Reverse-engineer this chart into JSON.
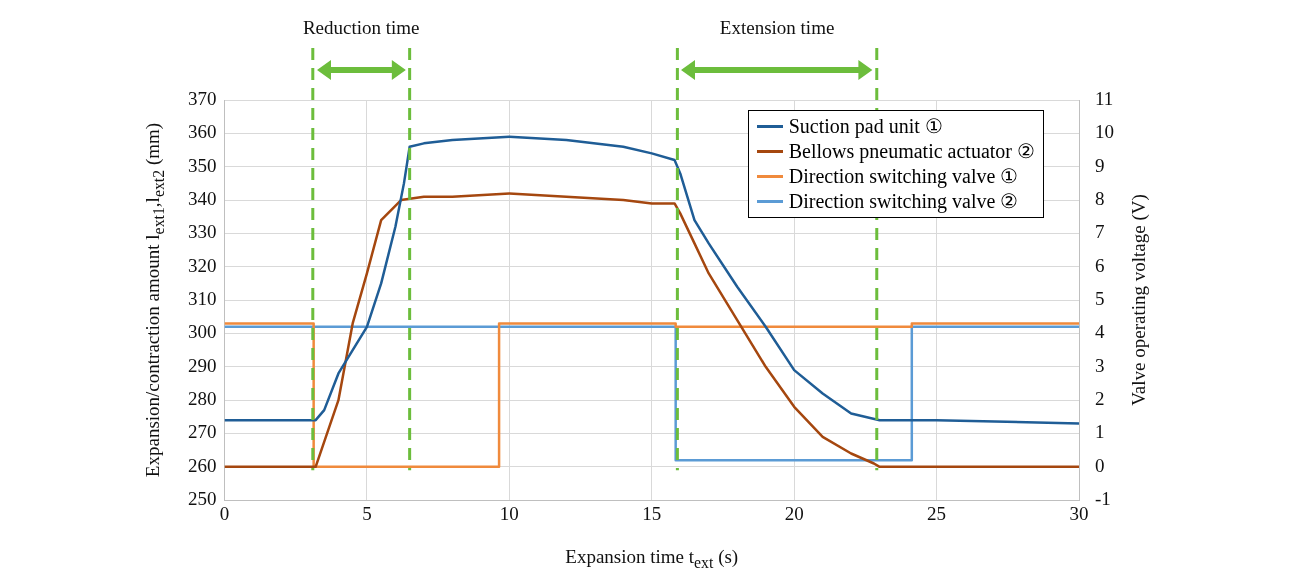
{
  "chart_data": {
    "type": "line",
    "xlabel": "Expansion time  t$_{ext}$  (s)",
    "ylabel": "Expansion/contraction amount  l$_{ext1}$,l$_{ext2}$  (mm)",
    "y2label": "Valve operating voltage (V)",
    "xlim": [
      0,
      30
    ],
    "xticks": [
      0,
      5,
      10,
      15,
      20,
      25,
      30
    ],
    "ylim": [
      250,
      370
    ],
    "yticks": [
      250,
      260,
      270,
      280,
      290,
      300,
      310,
      320,
      330,
      340,
      350,
      360,
      370
    ],
    "y2lim": [
      -1,
      11
    ],
    "y2ticks": [
      -1,
      0,
      1,
      2,
      3,
      4,
      5,
      6,
      7,
      8,
      9,
      10,
      11
    ],
    "grid": true,
    "legend": "top right",
    "series": [
      {
        "name": "Suction pad unit ①",
        "type": "line",
        "axis": "y",
        "color": "#1f5d96",
        "x": [
          0,
          3.2,
          3.5,
          4,
          5,
          5.5,
          6,
          6.3,
          6.5,
          7,
          8,
          10,
          12,
          14,
          15,
          15.8,
          16,
          16.5,
          17,
          18,
          19,
          20,
          21,
          22,
          23,
          25,
          30
        ],
        "values": [
          274,
          274,
          277,
          288,
          302,
          315,
          332,
          345,
          356,
          357,
          358,
          359,
          358,
          356,
          354,
          352,
          348,
          334,
          327,
          314,
          302,
          289,
          282,
          276,
          274,
          274,
          273
        ]
      },
      {
        "name": "Bellows pneumatic actuator ②",
        "type": "line",
        "axis": "y",
        "color": "#a5470f",
        "x": [
          0,
          3.2,
          4,
          4.5,
          5,
          5.5,
          6.2,
          7,
          8,
          10,
          12,
          14,
          15,
          15.8,
          16,
          16.5,
          17,
          18,
          19,
          20,
          21,
          22,
          22.8,
          23,
          30
        ],
        "values": [
          260,
          260,
          280,
          303,
          318,
          334,
          340,
          341,
          341,
          342,
          341,
          340,
          339,
          339,
          336,
          327,
          318,
          304,
          290,
          278,
          269,
          264,
          261,
          260,
          260
        ]
      },
      {
        "name": "Direction switching valve ①",
        "type": "step",
        "axis": "y2",
        "color": "#f08a3c",
        "x": [
          0,
          3.13,
          9.64,
          15.84,
          24.13,
          30
        ],
        "values": [
          4.3,
          0,
          4.3,
          4.2,
          4.3,
          4.3
        ]
      },
      {
        "name": "Direction switching valve ②",
        "type": "step",
        "axis": "y2",
        "color": "#5b9bd5",
        "x": [
          0,
          15.84,
          24.13,
          30
        ],
        "values": [
          4.2,
          0.2,
          4.2,
          4.2
        ]
      }
    ],
    "ref_lines": [
      {
        "axis": "x",
        "value": 3.1,
        "color": "#6cbd3c",
        "line_style": "dashed"
      },
      {
        "axis": "x",
        "value": 6.5,
        "color": "#6cbd3c",
        "line_style": "dashed"
      },
      {
        "axis": "x",
        "value": 15.9,
        "color": "#6cbd3c",
        "line_style": "dashed"
      },
      {
        "axis": "x",
        "value": 22.9,
        "color": "#6cbd3c",
        "line_style": "dashed"
      }
    ],
    "annotations": [
      "Reduction time",
      "Extension time"
    ]
  }
}
